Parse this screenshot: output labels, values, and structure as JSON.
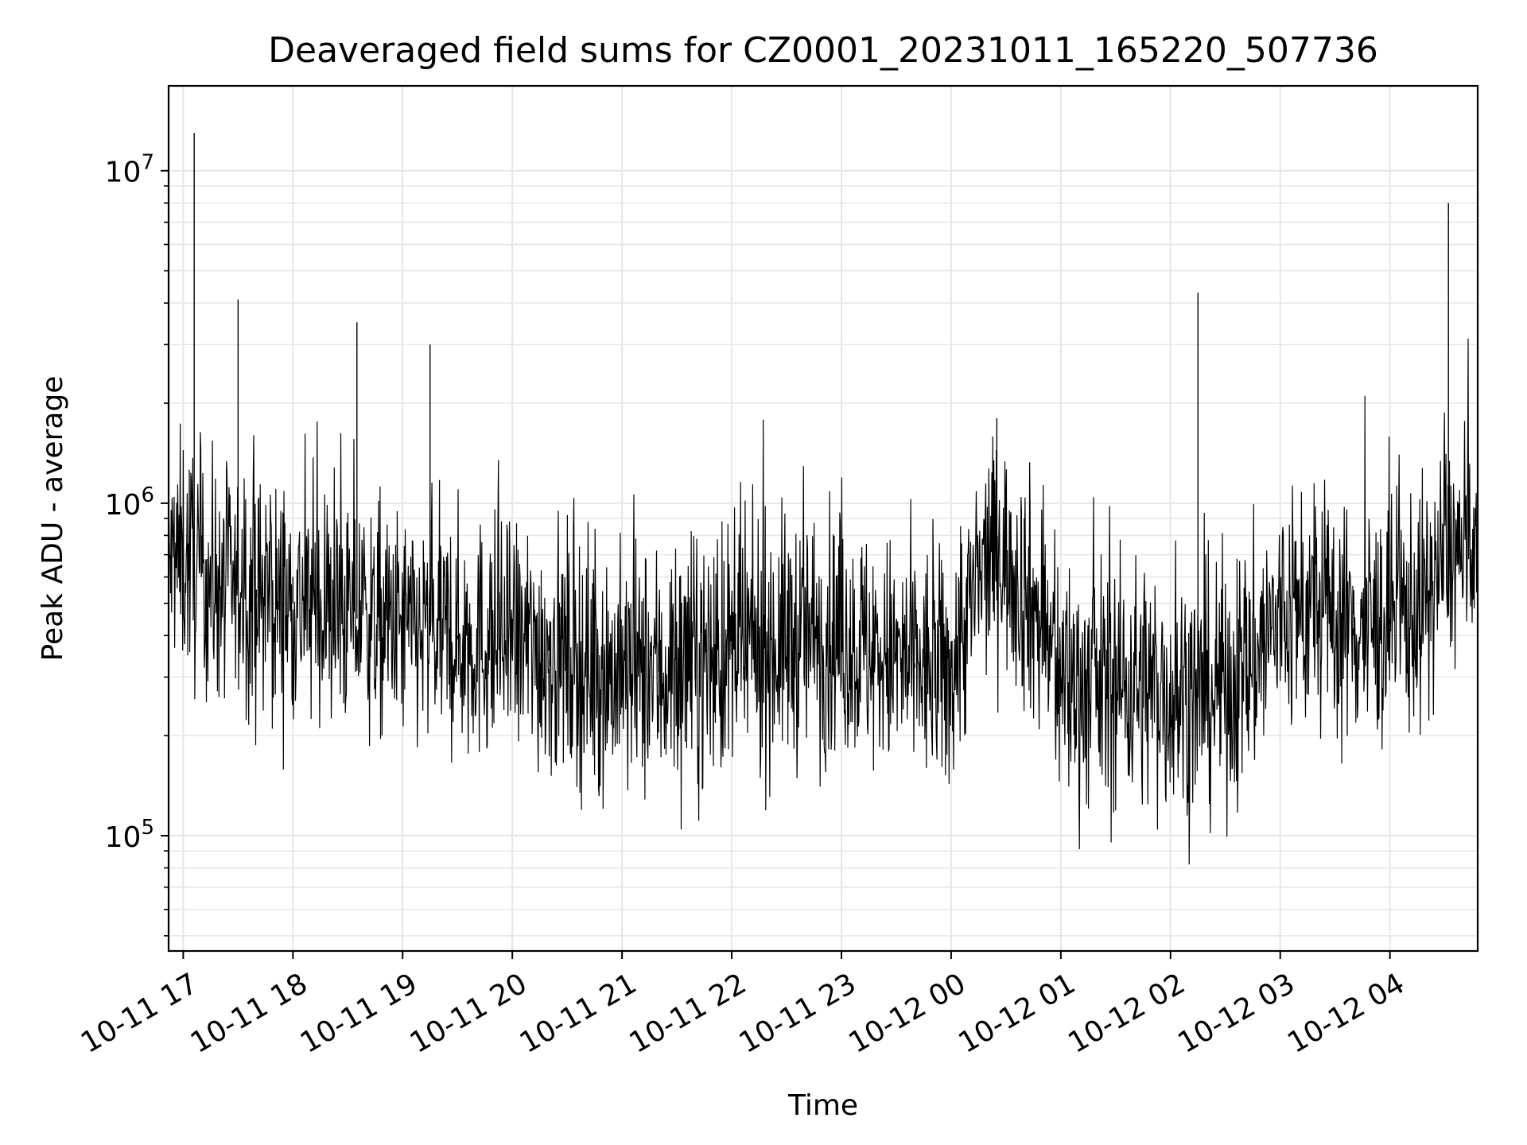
{
  "chart_data": {
    "type": "line",
    "title": "Deaveraged field sums for CZ0001_20231011_165220_507736",
    "xlabel": "Time",
    "ylabel": "Peak ADU - average",
    "yscale": "log",
    "ylim": [
      45000,
      18000000
    ],
    "xlim": [
      "2023-10-11 16:52",
      "2023-10-12 04:48"
    ],
    "grid": true,
    "line_color": "#000000",
    "grid_color": "#e6e6e6",
    "x_ticks": [
      {
        "value": "2023-10-11 17:00",
        "label": "10-11 17"
      },
      {
        "value": "2023-10-11 18:00",
        "label": "10-11 18"
      },
      {
        "value": "2023-10-11 19:00",
        "label": "10-11 19"
      },
      {
        "value": "2023-10-11 20:00",
        "label": "10-11 20"
      },
      {
        "value": "2023-10-11 21:00",
        "label": "10-11 21"
      },
      {
        "value": "2023-10-11 22:00",
        "label": "10-11 22"
      },
      {
        "value": "2023-10-11 23:00",
        "label": "10-11 23"
      },
      {
        "value": "2023-10-12 00:00",
        "label": "10-12 00"
      },
      {
        "value": "2023-10-12 01:00",
        "label": "10-12 01"
      },
      {
        "value": "2023-10-12 02:00",
        "label": "10-12 02"
      },
      {
        "value": "2023-10-12 03:00",
        "label": "10-12 03"
      },
      {
        "value": "2023-10-12 04:00",
        "label": "10-12 04"
      }
    ],
    "y_ticks": [
      {
        "value": 100000,
        "base": "10",
        "exp": "5"
      },
      {
        "value": 1000000,
        "base": "10",
        "exp": "6"
      },
      {
        "value": 10000000,
        "base": "10",
        "exp": "7"
      }
    ],
    "series": [
      {
        "x": [
          "2023-10-11 16:52",
          "2023-10-11 17:00",
          "2023-10-11 17:06",
          "2023-10-11 17:10",
          "2023-10-11 17:20",
          "2023-10-11 17:30",
          "2023-10-11 17:40",
          "2023-10-11 18:00",
          "2023-10-11 18:20",
          "2023-10-11 18:35",
          "2023-10-11 19:00",
          "2023-10-11 19:15",
          "2023-10-11 19:30",
          "2023-10-11 20:00",
          "2023-10-11 20:20",
          "2023-10-11 20:40",
          "2023-10-11 21:00",
          "2023-10-11 21:20",
          "2023-10-11 21:40",
          "2023-10-11 22:00",
          "2023-10-11 22:20",
          "2023-10-11 22:40",
          "2023-10-11 23:00",
          "2023-10-11 23:20",
          "2023-10-11 23:40",
          "2023-10-12 00:00",
          "2023-10-12 00:25",
          "2023-10-12 00:40",
          "2023-10-12 01:00",
          "2023-10-12 01:20",
          "2023-10-12 01:40",
          "2023-10-12 02:00",
          "2023-10-12 02:15",
          "2023-10-12 02:40",
          "2023-10-12 03:00",
          "2023-10-12 03:20",
          "2023-10-12 03:40",
          "2023-10-12 04:00",
          "2023-10-12 04:20",
          "2023-10-12 04:32",
          "2023-10-12 04:48"
        ],
        "y": [
          650000,
          700000,
          13000000,
          800000,
          600000,
          4100000,
          550000,
          600000,
          450000,
          3500000,
          400000,
          3000000,
          400000,
          450000,
          400000,
          300000,
          280000,
          380000,
          300000,
          400000,
          450000,
          500000,
          450000,
          380000,
          330000,
          300000,
          1800000,
          900000,
          300000,
          280000,
          300000,
          270000,
          4300000,
          320000,
          450000,
          500000,
          400000,
          450000,
          600000,
          8000000,
          600000
        ],
        "baseline": [
          650000,
          700000,
          650000,
          620000,
          560000,
          550000,
          520000,
          500000,
          470000,
          450000,
          420000,
          400000,
          390000,
          380000,
          360000,
          330000,
          300000,
          310000,
          330000,
          350000,
          370000,
          400000,
          390000,
          350000,
          320000,
          300000,
          750000,
          550000,
          290000,
          280000,
          290000,
          270000,
          260000,
          300000,
          450000,
          480000,
          420000,
          430000,
          500000,
          750000,
          600000
        ],
        "spread": [
          0.35,
          0.4,
          0.4,
          0.4,
          0.38,
          0.38,
          0.38,
          0.38,
          0.38,
          0.38,
          0.38,
          0.38,
          0.4,
          0.4,
          0.42,
          0.42,
          0.42,
          0.42,
          0.42,
          0.42,
          0.42,
          0.42,
          0.4,
          0.4,
          0.4,
          0.4,
          0.35,
          0.4,
          0.42,
          0.42,
          0.42,
          0.42,
          0.42,
          0.42,
          0.4,
          0.4,
          0.4,
          0.4,
          0.4,
          0.38,
          0.35
        ]
      }
    ]
  }
}
